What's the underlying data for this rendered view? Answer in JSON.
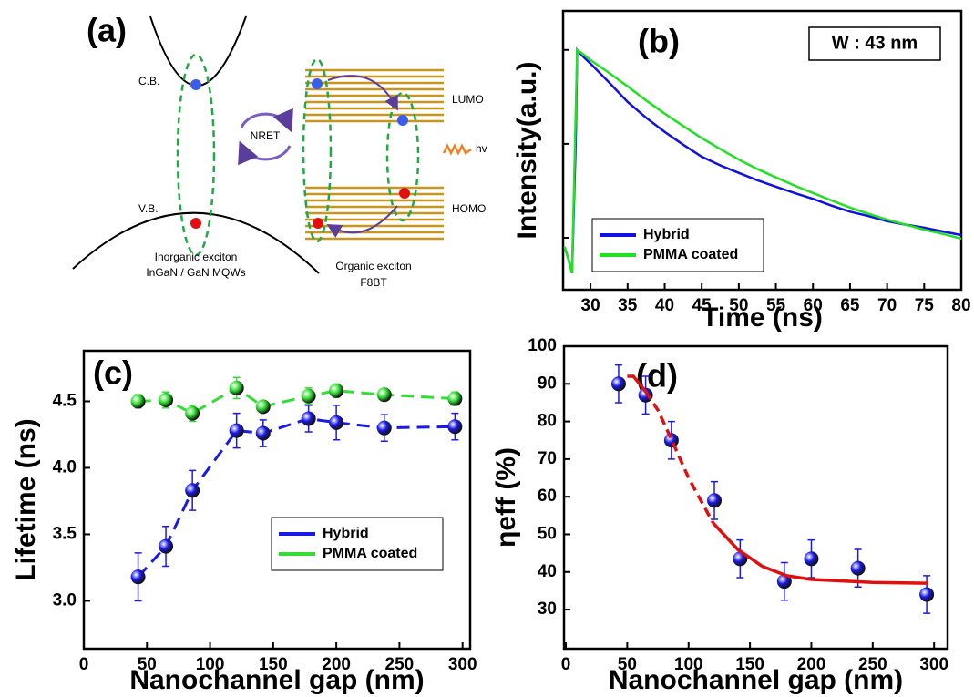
{
  "diagram": {
    "label": "(a)",
    "cb": "C.B.",
    "vb": "V.B.",
    "nret": "NRET",
    "lumo": "LUMO",
    "homo": "HOMO",
    "hv": "hv",
    "inorganic": [
      "Inorganic exciton",
      "InGaN / GaN MQWs"
    ],
    "organic": [
      "Organic exciton",
      "F8BT"
    ]
  },
  "chart_data": [
    {
      "type": "line",
      "label": "(b)",
      "annotation": "W : 43 nm",
      "xlabel": "Time (ns)",
      "ylabel": "Intensity(a.u.)",
      "log_y": true,
      "ytick_labels": false,
      "legend": "lower left",
      "xlim": [
        26.3,
        80
      ],
      "xticks": [
        30,
        35,
        40,
        45,
        50,
        55,
        60,
        65,
        70,
        75,
        80
      ],
      "ylim": [
        0.0028,
        2.6
      ],
      "yticks": [
        0.01,
        0.1,
        1
      ],
      "x": [
        26.5,
        27,
        27.5,
        28,
        28.2,
        29,
        30,
        32.5,
        35,
        37.5,
        40,
        42.5,
        45,
        47.5,
        50,
        52.5,
        55,
        57.5,
        60,
        62.5,
        65,
        67.5,
        70,
        72.5,
        75,
        77.5,
        80
      ],
      "series": [
        {
          "name": "Hybrid",
          "color": "#1010e0",
          "values": [
            0.008,
            0.006,
            0.0042,
            0.1,
            1.0,
            0.85,
            0.715,
            0.45,
            0.28,
            0.19,
            0.134,
            0.098,
            0.073,
            0.059,
            0.049,
            0.041,
            0.035,
            0.03,
            0.026,
            0.022,
            0.019,
            0.017,
            0.015,
            0.0138,
            0.0128,
            0.0117,
            0.0107
          ]
        },
        {
          "name": "PMMA coated",
          "color": "#22e022",
          "values": [
            0.008,
            0.006,
            0.0042,
            0.2,
            1.0,
            0.9,
            0.78,
            0.57,
            0.41,
            0.29,
            0.21,
            0.155,
            0.115,
            0.088,
            0.068,
            0.054,
            0.044,
            0.036,
            0.03,
            0.025,
            0.021,
            0.018,
            0.0156,
            0.0138,
            0.0122,
            0.011,
            0.0098
          ]
        }
      ]
    },
    {
      "type": "scatter",
      "label": "(c)",
      "xlabel": "Nanochannel gap (nm)",
      "ylabel": "Lifetime (ns)",
      "line_style": "dashed",
      "legend": "center right",
      "xlim": [
        0,
        306
      ],
      "xticks": [
        0,
        50,
        100,
        150,
        200,
        250,
        300
      ],
      "ylim": [
        2.64,
        4.88
      ],
      "yticks": [
        {
          "value": 3.0,
          "label": "3.0"
        },
        3.5,
        {
          "value": 4.0,
          "label": "4.0"
        },
        4.5
      ],
      "x": [
        43,
        65,
        86,
        121,
        142,
        178,
        200,
        238,
        294
      ],
      "series": [
        {
          "name": "Hybrid",
          "color": "#1a1ae6",
          "values": [
            3.18,
            3.41,
            3.83,
            4.28,
            4.26,
            4.37,
            4.34,
            4.3,
            4.31
          ],
          "errors": [
            0.18,
            0.15,
            0.15,
            0.13,
            0.1,
            0.1,
            0.13,
            0.1,
            0.1
          ]
        },
        {
          "name": "PMMA coated",
          "color": "#33dd33",
          "values": [
            4.5,
            4.51,
            4.41,
            4.6,
            4.46,
            4.54,
            4.58,
            4.55,
            4.52
          ],
          "errors": [
            0.05,
            0.06,
            0.06,
            0.08,
            0.04,
            0.06,
            0.05,
            0.03,
            0.05
          ]
        }
      ]
    },
    {
      "type": "scatter",
      "label": "(d)",
      "xlabel": "Nanochannel gap (nm)",
      "ylabel": "ηeff (%)",
      "xlim": [
        -1.5,
        311
      ],
      "xticks": [
        0,
        50,
        100,
        150,
        200,
        250,
        300
      ],
      "ylim": [
        19.6,
        100
      ],
      "yticks": [
        30,
        40,
        50,
        60,
        70,
        80,
        90,
        100
      ],
      "x": [
        43,
        65,
        86,
        121,
        142,
        178,
        200,
        238,
        294
      ],
      "series": [
        {
          "color": "#1a1ae6",
          "values": [
            90,
            87,
            75,
            59,
            43.5,
            37.5,
            43.5,
            41,
            34
          ],
          "errors": [
            5,
            5,
            5,
            5,
            5,
            5,
            5,
            5,
            5
          ]
        }
      ],
      "fit_color": "#e01010",
      "fit_segments": [
        {
          "style": "solid",
          "x": [
            50,
            55,
            60,
            65
          ],
          "values": [
            92,
            92,
            90,
            88
          ]
        },
        {
          "style": "dashed",
          "x": [
            65,
            75,
            85,
            100,
            120
          ],
          "values": [
            88,
            83,
            76,
            65,
            53
          ]
        },
        {
          "style": "solid",
          "x": [
            120,
            140,
            160,
            180,
            200,
            250,
            295
          ],
          "values": [
            53,
            46,
            41.5,
            39,
            38,
            37.2,
            37
          ]
        }
      ]
    }
  ]
}
